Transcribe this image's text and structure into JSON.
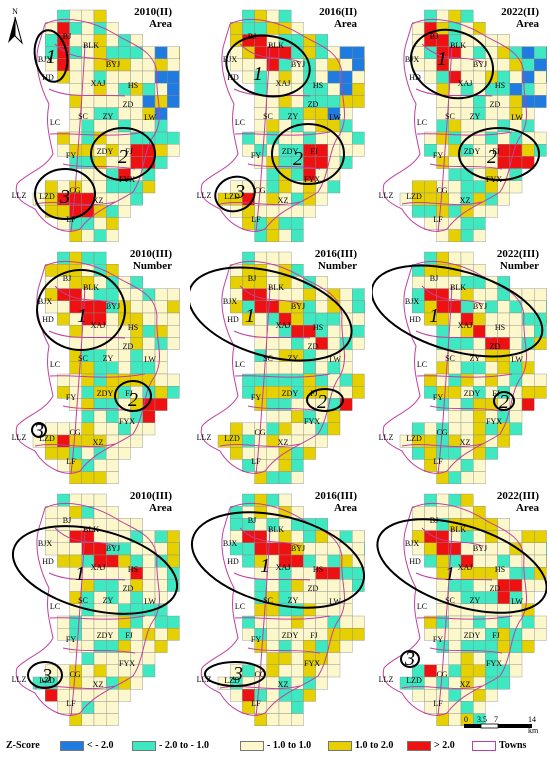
{
  "figure": {
    "north_label": "N",
    "panels": [
      {
        "id": "2010II-area",
        "title_year": "2010(II)",
        "title_metric": "Area",
        "clusters": [
          {
            "num": "1"
          },
          {
            "num": "2"
          },
          {
            "num": "3"
          }
        ]
      },
      {
        "id": "2016II-area",
        "title_year": "2016(II)",
        "title_metric": "Area",
        "clusters": [
          {
            "num": "1"
          },
          {
            "num": "2"
          },
          {
            "num": "3"
          }
        ]
      },
      {
        "id": "2022II-area",
        "title_year": "2022(II)",
        "title_metric": "Area",
        "clusters": [
          {
            "num": "1"
          },
          {
            "num": "2"
          }
        ]
      },
      {
        "id": "2010III-number",
        "title_year": "2010(III)",
        "title_metric": "Number",
        "clusters": [
          {
            "num": "1"
          },
          {
            "num": "2"
          },
          {
            "num": "3"
          }
        ]
      },
      {
        "id": "2016III-number",
        "title_year": "2016(III)",
        "title_metric": "Number",
        "clusters": [
          {
            "num": "1"
          },
          {
            "num": "2"
          }
        ]
      },
      {
        "id": "2022III-number",
        "title_year": "2022(III)",
        "title_metric": "Number",
        "clusters": [
          {
            "num": "1"
          },
          {
            "num": "2"
          }
        ]
      },
      {
        "id": "2010III-area",
        "title_year": "2010(III)",
        "title_metric": "Area",
        "clusters": [
          {
            "num": "1"
          },
          {
            "num": "3"
          }
        ]
      },
      {
        "id": "2016III-area",
        "title_year": "2016(III)",
        "title_metric": "Area",
        "clusters": [
          {
            "num": "1"
          },
          {
            "num": "3"
          }
        ]
      },
      {
        "id": "2022III-area",
        "title_year": "2022(III)",
        "title_metric": "Area",
        "clusters": [
          {
            "num": "1"
          },
          {
            "num": "3"
          }
        ]
      }
    ],
    "towns": [
      "BJ",
      "BLK",
      "BJX",
      "BYJ",
      "HD",
      "XAJ",
      "HS",
      "LC",
      "SC",
      "ZY",
      "ZD",
      "LW",
      "FY",
      "ZDY",
      "FJ",
      "FYX",
      "LLZ",
      "LZD",
      "CG",
      "XZ",
      "LF"
    ]
  },
  "legend": {
    "title": "Z-Score",
    "items": [
      {
        "label": "< - 2.0",
        "color": "#1f7be0"
      },
      {
        "label": "- 2.0 to - 1.0",
        "color": "#3ee8c0"
      },
      {
        "label": "- 1.0 to 1.0",
        "color": "#fdf8cc"
      },
      {
        "label": "1.0 to 2.0",
        "color": "#e6d000"
      },
      {
        "label": "> 2.0",
        "color": "#ee1111"
      }
    ],
    "towns_label": "Towns",
    "towns_color": "#c040a0"
  },
  "scalebar": {
    "ticks": [
      "0",
      "3.5",
      "7",
      "14"
    ],
    "unit": "km"
  }
}
